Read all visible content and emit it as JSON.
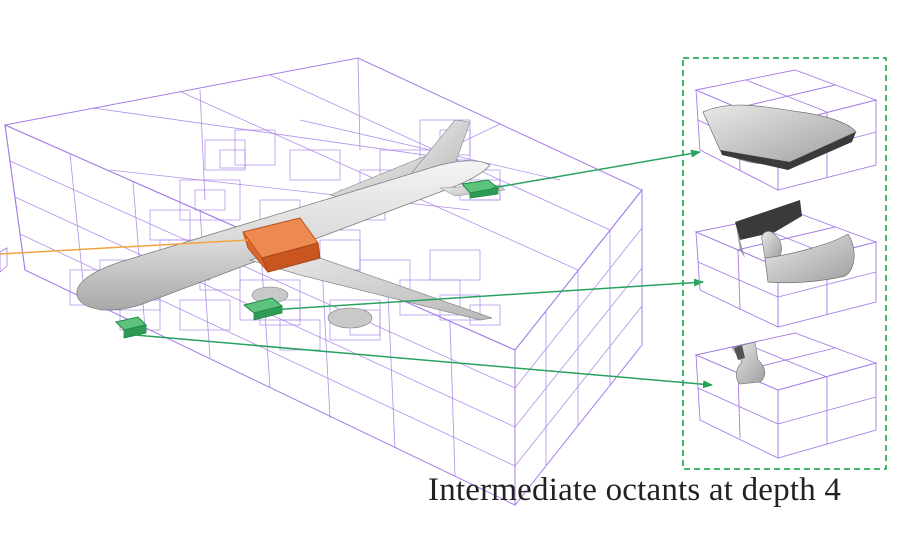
{
  "figure": {
    "caption": "Intermediate octants at depth 4",
    "colors": {
      "octree_lines": "#a57be8",
      "highlight_octant": "#e0743c",
      "leaf_octants": "#2fae5a",
      "arrow_green": "#27a35f",
      "arrow_orange": "#f2a341",
      "panel_border": "#2fae5a",
      "caption_text": "#222222"
    },
    "icons": {
      "main_model": "airplane-mesh-icon",
      "zoom_1": "wing-surface-patch-icon",
      "zoom_2": "fuselage-wing-junction-patch-icon",
      "zoom_3": "engine-pylon-patch-icon"
    }
  }
}
